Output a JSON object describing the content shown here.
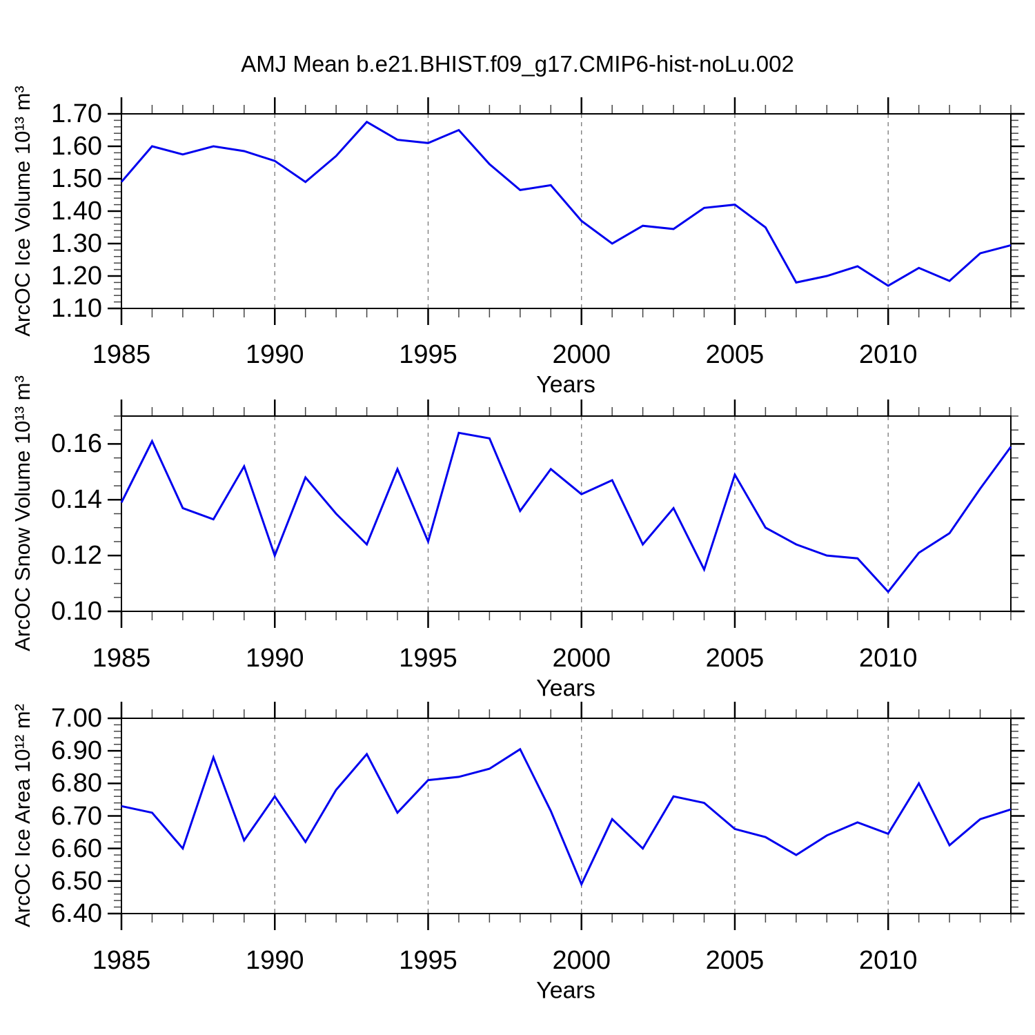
{
  "title": "AMJ Mean b.e21.BHIST.f09_g17.CMIP6-hist-noLu.002",
  "background": "#ffffff",
  "axis_color": "#000000",
  "chart_data": [
    {
      "type": "line",
      "name": "arcoc-ice-volume",
      "ylabel": "ArcOC Ice Volume 10¹³ m³",
      "xlabel": "Years",
      "line_color": "#0000ee",
      "grid_color": "#808080",
      "grid_style": "dashed-vertical",
      "xlim": [
        1985,
        2014
      ],
      "ylim": [
        1.1,
        1.7
      ],
      "xtick_major": [
        1985,
        1990,
        1995,
        2000,
        2005,
        2010
      ],
      "xtick_minor_step": 1,
      "ytick_major": [
        1.1,
        1.2,
        1.3,
        1.4,
        1.5,
        1.6,
        1.7
      ],
      "ytick_labels": [
        "1.10",
        "1.20",
        "1.30",
        "1.40",
        "1.50",
        "1.60",
        "1.70"
      ],
      "ytick_minor_step": 0.02,
      "grid_x_dashed": [
        1990,
        1995,
        2000,
        2005,
        2010
      ],
      "x": [
        1985,
        1986,
        1987,
        1988,
        1989,
        1990,
        1991,
        1992,
        1993,
        1994,
        1995,
        1996,
        1997,
        1998,
        1999,
        2000,
        2001,
        2002,
        2003,
        2004,
        2005,
        2006,
        2007,
        2008,
        2009,
        2010,
        2011,
        2012,
        2013,
        2014
      ],
      "values": [
        1.49,
        1.6,
        1.575,
        1.6,
        1.585,
        1.555,
        1.49,
        1.57,
        1.675,
        1.62,
        1.61,
        1.65,
        1.545,
        1.465,
        1.48,
        1.37,
        1.3,
        1.355,
        1.345,
        1.41,
        1.42,
        1.35,
        1.18,
        1.2,
        1.23,
        1.17,
        1.225,
        1.185,
        1.27,
        1.295
      ]
    },
    {
      "type": "line",
      "name": "arcoc-snow-volume",
      "ylabel": "ArcOC Snow Volume 10¹³ m³",
      "xlabel": "Years",
      "line_color": "#0000ee",
      "grid_color": "#808080",
      "grid_style": "dashed-vertical",
      "xlim": [
        1985,
        2014
      ],
      "ylim": [
        0.1,
        0.17
      ],
      "xtick_major": [
        1985,
        1990,
        1995,
        2000,
        2005,
        2010
      ],
      "xtick_minor_step": 1,
      "ytick_major": [
        0.1,
        0.12,
        0.14,
        0.16
      ],
      "ytick_labels": [
        "0.10",
        "0.12",
        "0.14",
        "0.16"
      ],
      "ytick_minor_step": 0.005,
      "grid_x_dashed": [
        1990,
        1995,
        2000,
        2005,
        2010
      ],
      "x": [
        1985,
        1986,
        1987,
        1988,
        1989,
        1990,
        1991,
        1992,
        1993,
        1994,
        1995,
        1996,
        1997,
        1998,
        1999,
        2000,
        2001,
        2002,
        2003,
        2004,
        2005,
        2006,
        2007,
        2008,
        2009,
        2010,
        2011,
        2012,
        2013,
        2014
      ],
      "values": [
        0.139,
        0.161,
        0.137,
        0.133,
        0.152,
        0.12,
        0.148,
        0.135,
        0.124,
        0.151,
        0.125,
        0.164,
        0.162,
        0.136,
        0.151,
        0.142,
        0.147,
        0.124,
        0.137,
        0.115,
        0.149,
        0.13,
        0.124,
        0.12,
        0.119,
        0.107,
        0.121,
        0.128,
        0.144,
        0.159
      ]
    },
    {
      "type": "line",
      "name": "arcoc-ice-area",
      "ylabel": "ArcOC Ice Area 10¹² m²",
      "xlabel": "Years",
      "line_color": "#0000ee",
      "grid_color": "#808080",
      "grid_style": "dashed-vertical",
      "xlim": [
        1985,
        2014
      ],
      "ylim": [
        6.4,
        7.0
      ],
      "xtick_major": [
        1985,
        1990,
        1995,
        2000,
        2005,
        2010
      ],
      "xtick_minor_step": 1,
      "ytick_major": [
        6.4,
        6.5,
        6.6,
        6.7,
        6.8,
        6.9,
        7.0
      ],
      "ytick_labels": [
        "6.40",
        "6.50",
        "6.60",
        "6.70",
        "6.80",
        "6.90",
        "7.00"
      ],
      "ytick_minor_step": 0.02,
      "grid_x_dashed": [
        1990,
        1995,
        2000,
        2005,
        2010
      ],
      "x": [
        1985,
        1986,
        1987,
        1988,
        1989,
        1990,
        1991,
        1992,
        1993,
        1994,
        1995,
        1996,
        1997,
        1998,
        1999,
        2000,
        2001,
        2002,
        2003,
        2004,
        2005,
        2006,
        2007,
        2008,
        2009,
        2010,
        2011,
        2012,
        2013,
        2014
      ],
      "values": [
        6.73,
        6.71,
        6.6,
        6.88,
        6.625,
        6.76,
        6.62,
        6.78,
        6.89,
        6.71,
        6.81,
        6.82,
        6.845,
        6.905,
        6.715,
        6.49,
        6.69,
        6.6,
        6.76,
        6.74,
        6.66,
        6.635,
        6.58,
        6.64,
        6.68,
        6.645,
        6.8,
        6.61,
        6.69,
        6.72
      ]
    }
  ]
}
